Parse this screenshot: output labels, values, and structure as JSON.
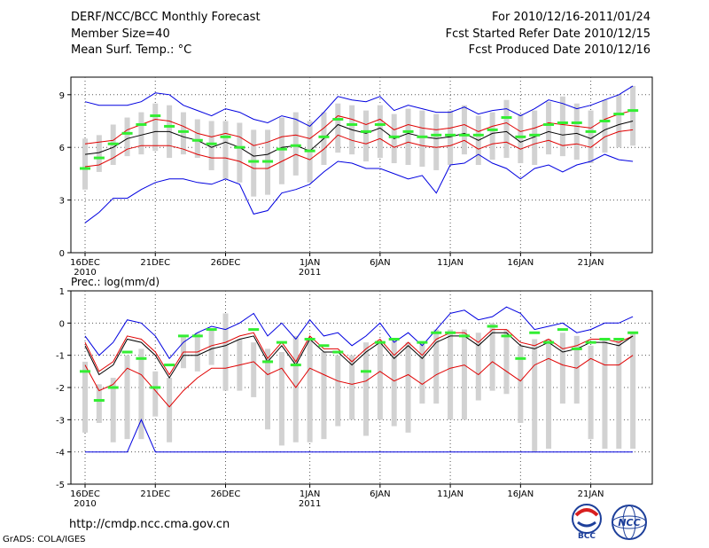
{
  "header": {
    "title": "DERF/NCC/BCC Monthly Forecast",
    "member_size": "Member Size=40",
    "variable": "Mean Surf. Temp.: °C",
    "period": "For 2010/12/16-2011/01/24",
    "fcst_started": "Fcst Started Refer Date 2010/12/15",
    "fcst_produced": "Fcst Produced Date 2010/12/16"
  },
  "footer": {
    "url": "http://cmdp.ncc.cma.gov.cn",
    "grads": "GrADS: COLA/IGES",
    "bcc_logo": "BCC",
    "ncc_logo": "NCC"
  },
  "colors": {
    "max_min": "#0000e0",
    "spread": "#e00000",
    "mean": "#000000",
    "obs": "#33ee33",
    "box": "#d2d2d2"
  },
  "chart_data": [
    {
      "type": "line",
      "title": "Mean Surf. Temp.: °C",
      "ylabel": "°C",
      "ylim": [
        0,
        10
      ],
      "yticks": [
        0,
        3,
        6,
        9
      ],
      "x_start_date": "2010-12-16",
      "x_tick_labels": [
        {
          "day": 1,
          "label": "16DEC",
          "sub": "2010"
        },
        {
          "day": 6,
          "label": "21DEC",
          "sub": ""
        },
        {
          "day": 11,
          "label": "26DEC",
          "sub": ""
        },
        {
          "day": 17,
          "label": "1JAN",
          "sub": "2011"
        },
        {
          "day": 22,
          "label": "6JAN",
          "sub": ""
        },
        {
          "day": 27,
          "label": "11JAN",
          "sub": ""
        },
        {
          "day": 32,
          "label": "16JAN",
          "sub": ""
        },
        {
          "day": 37,
          "label": "21JAN",
          "sub": ""
        }
      ],
      "days": [
        1,
        2,
        3,
        4,
        5,
        6,
        7,
        8,
        9,
        10,
        11,
        12,
        13,
        14,
        15,
        16,
        17,
        18,
        19,
        20,
        21,
        22,
        23,
        24,
        25,
        26,
        27,
        28,
        29,
        30,
        31,
        32,
        33,
        34,
        35,
        36,
        37,
        38,
        39,
        40
      ],
      "series": [
        {
          "name": "max",
          "values": [
            8.6,
            8.4,
            8.4,
            8.4,
            8.6,
            9.1,
            9.0,
            8.4,
            8.1,
            7.8,
            8.2,
            8.0,
            7.6,
            7.4,
            7.8,
            7.6,
            7.2,
            8.0,
            8.9,
            8.7,
            8.6,
            8.9,
            8.1,
            8.4,
            8.2,
            8.0,
            8.0,
            8.3,
            7.9,
            8.1,
            8.2,
            7.8,
            8.2,
            8.7,
            8.5,
            8.2,
            8.4,
            8.7,
            9.0,
            9.5
          ]
        },
        {
          "name": "spread_upper",
          "values": [
            6.2,
            6.3,
            6.4,
            7.0,
            7.3,
            7.6,
            7.5,
            7.2,
            6.8,
            6.6,
            6.8,
            6.6,
            6.1,
            6.3,
            6.6,
            6.7,
            6.5,
            7.1,
            7.8,
            7.6,
            7.3,
            7.6,
            7.0,
            7.3,
            7.1,
            7.0,
            7.1,
            7.3,
            6.9,
            7.2,
            7.4,
            6.9,
            7.1,
            7.4,
            7.3,
            7.2,
            7.1,
            7.6,
            7.9,
            8.1
          ]
        },
        {
          "name": "mean",
          "values": [
            5.6,
            5.7,
            6.0,
            6.5,
            6.7,
            6.9,
            6.9,
            6.6,
            6.4,
            6.0,
            6.3,
            6.0,
            5.5,
            5.6,
            6.0,
            6.1,
            5.8,
            6.5,
            7.3,
            7.0,
            6.8,
            7.1,
            6.5,
            6.8,
            6.6,
            6.5,
            6.6,
            6.8,
            6.4,
            6.8,
            6.9,
            6.3,
            6.6,
            6.9,
            6.7,
            6.8,
            6.5,
            7.0,
            7.3,
            7.5
          ]
        },
        {
          "name": "spread_lower",
          "values": [
            4.9,
            5.0,
            5.4,
            5.9,
            6.1,
            6.1,
            6.1,
            5.9,
            5.6,
            5.4,
            5.4,
            5.2,
            4.8,
            4.8,
            5.2,
            5.6,
            5.3,
            5.9,
            6.7,
            6.4,
            6.2,
            6.5,
            6.0,
            6.3,
            6.1,
            6.0,
            6.1,
            6.4,
            5.9,
            6.2,
            6.3,
            5.9,
            6.2,
            6.4,
            6.1,
            6.2,
            6.0,
            6.6,
            6.9,
            7.0
          ]
        },
        {
          "name": "min",
          "values": [
            1.7,
            2.3,
            3.1,
            3.1,
            3.6,
            4.0,
            4.2,
            4.2,
            4.0,
            3.9,
            4.2,
            3.9,
            2.2,
            2.4,
            3.4,
            3.6,
            3.9,
            4.6,
            5.2,
            5.1,
            4.8,
            4.8,
            4.5,
            4.2,
            4.4,
            3.4,
            5.0,
            5.1,
            5.6,
            5.1,
            4.8,
            4.2,
            4.8,
            5.0,
            4.6,
            5.0,
            5.2,
            5.6,
            5.3,
            5.2
          ]
        },
        {
          "name": "box_top",
          "values": [
            6.5,
            6.7,
            7.3,
            7.7,
            8.0,
            8.5,
            8.4,
            8.0,
            7.6,
            7.5,
            7.5,
            7.4,
            7.0,
            7.0,
            7.7,
            8.0,
            7.5,
            8.0,
            8.5,
            8.4,
            8.1,
            8.4,
            7.9,
            8.2,
            8.1,
            7.9,
            8.1,
            8.4,
            7.8,
            8.0,
            8.7,
            7.9,
            8.1,
            8.6,
            8.9,
            8.5,
            8.1,
            8.7,
            9.0,
            9.5
          ]
        },
        {
          "name": "box_bottom",
          "values": [
            3.6,
            4.6,
            5.0,
            5.5,
            5.6,
            5.8,
            5.4,
            5.6,
            5.4,
            4.7,
            4.2,
            4.0,
            3.2,
            3.3,
            3.9,
            4.4,
            4.0,
            5.0,
            5.7,
            5.6,
            5.2,
            5.4,
            5.1,
            5.0,
            4.9,
            4.7,
            5.0,
            5.6,
            5.0,
            5.3,
            5.4,
            5.1,
            5.0,
            5.6,
            5.5,
            5.3,
            5.1,
            5.7,
            6.0,
            6.1
          ]
        },
        {
          "name": "observed",
          "values": [
            4.8,
            5.4,
            6.2,
            6.8,
            7.3,
            7.8,
            7.2,
            6.9,
            6.4,
            6.2,
            6.6,
            6.0,
            5.2,
            5.2,
            5.9,
            6.1,
            5.8,
            6.6,
            7.6,
            7.3,
            6.9,
            7.3,
            6.6,
            6.9,
            6.6,
            6.7,
            6.7,
            6.7,
            6.7,
            7.0,
            7.7,
            6.6,
            6.7,
            7.3,
            7.4,
            7.4,
            6.9,
            7.5,
            7.9,
            8.1
          ]
        }
      ]
    },
    {
      "type": "line",
      "title": "Prec.: log(mm/d)",
      "ylabel": "log(mm/d)",
      "ylim": [
        -5,
        1
      ],
      "yticks": [
        -5,
        -4,
        -3,
        -2,
        -1,
        0,
        1
      ],
      "x_start_date": "2010-12-16",
      "x_tick_labels": [
        {
          "day": 1,
          "label": "16DEC",
          "sub": "2010"
        },
        {
          "day": 6,
          "label": "21DEC",
          "sub": ""
        },
        {
          "day": 11,
          "label": "26DEC",
          "sub": ""
        },
        {
          "day": 17,
          "label": "1JAN",
          "sub": "2011"
        },
        {
          "day": 22,
          "label": "6JAN",
          "sub": ""
        },
        {
          "day": 27,
          "label": "11JAN",
          "sub": ""
        },
        {
          "day": 32,
          "label": "16JAN",
          "sub": ""
        },
        {
          "day": 37,
          "label": "21JAN",
          "sub": ""
        }
      ],
      "days": [
        1,
        2,
        3,
        4,
        5,
        6,
        7,
        8,
        9,
        10,
        11,
        12,
        13,
        14,
        15,
        16,
        17,
        18,
        19,
        20,
        21,
        22,
        23,
        24,
        25,
        26,
        27,
        28,
        29,
        30,
        31,
        32,
        33,
        34,
        35,
        36,
        37,
        38,
        39,
        40
      ],
      "series": [
        {
          "name": "max",
          "values": [
            -0.4,
            -1.0,
            -0.6,
            0.1,
            0.0,
            -0.4,
            -1.1,
            -0.6,
            -0.3,
            -0.1,
            -0.2,
            0.0,
            0.3,
            -0.4,
            0.0,
            -0.5,
            0.1,
            -0.4,
            -0.3,
            -0.7,
            -0.4,
            0.0,
            -0.6,
            -0.3,
            -0.7,
            -0.2,
            0.3,
            0.4,
            0.1,
            0.2,
            0.5,
            0.3,
            -0.2,
            -0.1,
            0.0,
            -0.3,
            -0.2,
            0.0,
            0.0,
            0.2
          ]
        },
        {
          "name": "spread_upper",
          "values": [
            -0.6,
            -1.5,
            -1.2,
            -0.4,
            -0.5,
            -0.9,
            -1.6,
            -0.9,
            -0.9,
            -0.7,
            -0.6,
            -0.4,
            -0.3,
            -1.1,
            -0.6,
            -1.2,
            -0.4,
            -0.8,
            -0.8,
            -1.2,
            -0.8,
            -0.5,
            -1.0,
            -0.6,
            -1.0,
            -0.5,
            -0.3,
            -0.3,
            -0.6,
            -0.2,
            -0.2,
            -0.6,
            -0.7,
            -0.5,
            -0.8,
            -0.7,
            -0.5,
            -0.5,
            -0.6,
            -0.4
          ]
        },
        {
          "name": "mean",
          "values": [
            -0.7,
            -1.6,
            -1.3,
            -0.5,
            -0.6,
            -1.0,
            -1.7,
            -1.0,
            -1.0,
            -0.8,
            -0.7,
            -0.5,
            -0.4,
            -1.2,
            -0.7,
            -1.3,
            -0.5,
            -0.9,
            -0.9,
            -1.3,
            -0.9,
            -0.6,
            -1.1,
            -0.7,
            -1.1,
            -0.6,
            -0.4,
            -0.4,
            -0.7,
            -0.3,
            -0.3,
            -0.7,
            -0.8,
            -0.6,
            -0.9,
            -0.8,
            -0.6,
            -0.6,
            -0.7,
            -0.4
          ]
        },
        {
          "name": "spread_lower",
          "values": [
            -1.3,
            -2.1,
            -1.9,
            -1.4,
            -1.6,
            -2.1,
            -2.6,
            -2.1,
            -1.7,
            -1.4,
            -1.4,
            -1.3,
            -1.2,
            -1.6,
            -1.4,
            -2.0,
            -1.4,
            -1.6,
            -1.8,
            -1.9,
            -1.8,
            -1.5,
            -1.8,
            -1.6,
            -1.9,
            -1.6,
            -1.4,
            -1.3,
            -1.6,
            -1.2,
            -1.5,
            -1.8,
            -1.3,
            -1.1,
            -1.3,
            -1.4,
            -1.1,
            -1.3,
            -1.3,
            -1.0
          ]
        },
        {
          "name": "min",
          "values": [
            -4.0,
            -4.0,
            -4.0,
            -4.0,
            -3.0,
            -4.0,
            -4.0,
            -4.0,
            -4.0,
            -4.0,
            -4.0,
            -4.0,
            -4.0,
            -4.0,
            -4.0,
            -4.0,
            -4.0,
            -4.0,
            -4.0,
            -4.0,
            -4.0,
            -4.0,
            -4.0,
            -4.0,
            -4.0,
            -4.0,
            -4.0,
            -4.0,
            -4.0,
            -4.0,
            -4.0,
            -4.0,
            -4.0,
            -4.0,
            -4.0,
            -4.0,
            -4.0,
            -4.0,
            -4.0,
            -4.0
          ]
        },
        {
          "name": "box_top",
          "values": [
            -1.2,
            -1.9,
            -1.7,
            -1.0,
            -0.8,
            -1.5,
            -1.7,
            -0.4,
            -0.3,
            -0.2,
            0.3,
            -0.5,
            -0.6,
            -0.8,
            -0.9,
            -0.4,
            -0.5,
            -0.9,
            -1.0,
            -1.0,
            -0.6,
            -0.6,
            -0.5,
            -0.6,
            -0.6,
            -0.2,
            -0.2,
            -0.2,
            -0.3,
            0.0,
            -0.2,
            -0.7,
            -0.5,
            -0.5,
            -0.3,
            -0.4,
            -0.7,
            -0.5,
            -0.5,
            -0.3
          ]
        },
        {
          "name": "box_bottom",
          "values": [
            -3.4,
            -3.1,
            -3.7,
            -3.6,
            -3.6,
            -2.9,
            -3.7,
            -1.4,
            -1.5,
            -1.3,
            -2.1,
            -2.1,
            -2.3,
            -3.3,
            -3.8,
            -3.7,
            -3.7,
            -3.6,
            -3.2,
            -3.0,
            -3.5,
            -3.0,
            -3.2,
            -3.4,
            -2.5,
            -2.5,
            -3.0,
            -3.0,
            -2.4,
            -2.1,
            -2.2,
            -3.1,
            -4.0,
            -3.9,
            -2.5,
            -2.5,
            -3.6,
            -3.9,
            -3.9,
            -3.9
          ]
        },
        {
          "name": "observed",
          "values": [
            -1.5,
            -2.4,
            -2.0,
            -0.9,
            -1.1,
            -2.0,
            -1.3,
            -0.4,
            -0.4,
            -0.2,
            null,
            null,
            -0.2,
            -1.2,
            -0.6,
            -1.3,
            -0.5,
            -0.7,
            -0.9,
            null,
            -1.5,
            -0.6,
            -0.5,
            null,
            -0.6,
            -0.3,
            -0.3,
            -0.4,
            null,
            -0.1,
            -0.4,
            -1.1,
            -0.3,
            -0.6,
            -0.2,
            -0.8,
            -0.6,
            -0.5,
            -0.5,
            -0.3
          ]
        }
      ]
    }
  ]
}
